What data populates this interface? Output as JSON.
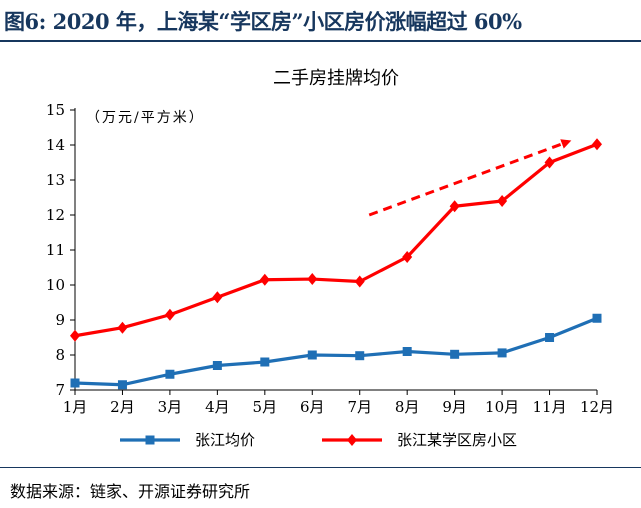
{
  "figure": {
    "title": "图6:  2020 年，上海某“学区房”小区房价涨幅超过 60%",
    "source": "数据来源：链家、开源证券研究所"
  },
  "colors": {
    "title": "#17375e",
    "series_blue": "#1f6fb5",
    "series_red": "#ff0000"
  },
  "chart_data": {
    "type": "line",
    "title": "二手房挂牌均价",
    "ylabel": "（万元/平方米）",
    "xlabel": "",
    "categories": [
      "1月",
      "2月",
      "3月",
      "4月",
      "5月",
      "6月",
      "7月",
      "8月",
      "9月",
      "10月",
      "11月",
      "12月"
    ],
    "ylim": [
      7,
      15
    ],
    "yticks": [
      7,
      8,
      9,
      10,
      11,
      12,
      13,
      14,
      15
    ],
    "grid": false,
    "legend_position": "bottom",
    "series": [
      {
        "name": "张江均价",
        "marker": "square",
        "color": "#1f6fb5",
        "values": [
          7.2,
          7.15,
          7.45,
          7.7,
          7.8,
          8.0,
          7.98,
          8.1,
          8.02,
          8.06,
          8.5,
          9.05
        ]
      },
      {
        "name": "张江某学区房小区",
        "marker": "diamond",
        "color": "#ff0000",
        "values": [
          8.55,
          8.78,
          9.15,
          9.65,
          10.15,
          10.17,
          10.1,
          10.8,
          12.25,
          12.4,
          13.5,
          14.02
        ]
      }
    ],
    "annotation": {
      "type": "dashed-arrow",
      "color": "#ff0000",
      "from": {
        "category_index": 6.2,
        "value": 12.0
      },
      "to": {
        "category_index": 10.4,
        "value": 14.1
      }
    }
  }
}
